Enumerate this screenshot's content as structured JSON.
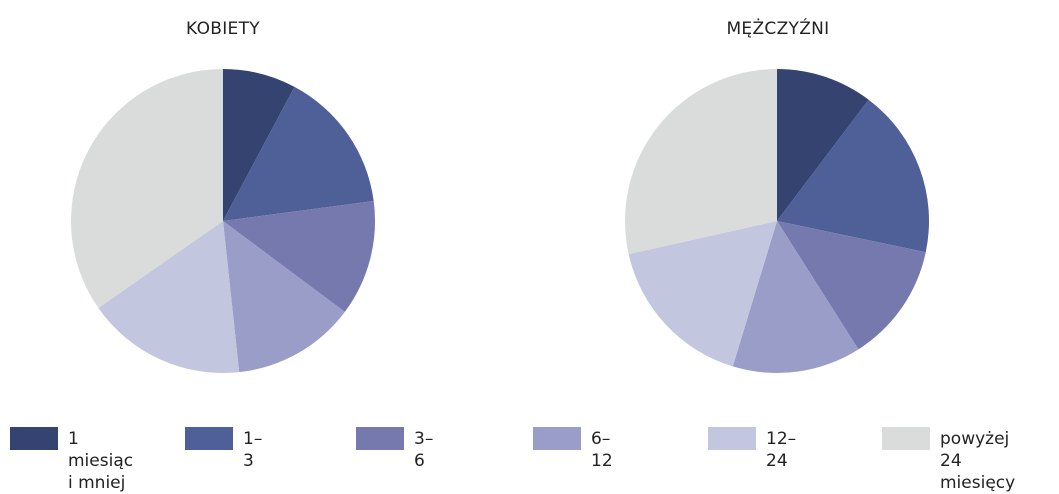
{
  "chart_data": [
    {
      "type": "pie",
      "title": "KOBIETY",
      "labels": [
        "1 miesiąc i mniej",
        "1–3",
        "3–6",
        "6–12",
        "12–24",
        "powyżej 24 miesięcy"
      ],
      "values": [
        7.8,
        15.1,
        12.3,
        13.1,
        17.0,
        34.7
      ]
    },
    {
      "type": "pie",
      "title": "MĘŻCZYŹNI",
      "labels": [
        "1 miesiąc i mniej",
        "1–3",
        "3–6",
        "6–12",
        "12–24",
        "powyżej 24 miesięcy"
      ],
      "values": [
        10.3,
        18.0,
        12.7,
        13.7,
        16.8,
        28.5
      ]
    }
  ],
  "colors": [
    "#354370",
    "#4f5f98",
    "#7579ae",
    "#9a9dc7",
    "#c2c6df",
    "#dadbdb"
  ],
  "legend": [
    {
      "label": "1 miesiąc\ni mniej"
    },
    {
      "label": "1–3"
    },
    {
      "label": "3–6"
    },
    {
      "label": "6–12"
    },
    {
      "label": "12–24"
    },
    {
      "label": "powyżej 24\nmiesięcy"
    }
  ]
}
